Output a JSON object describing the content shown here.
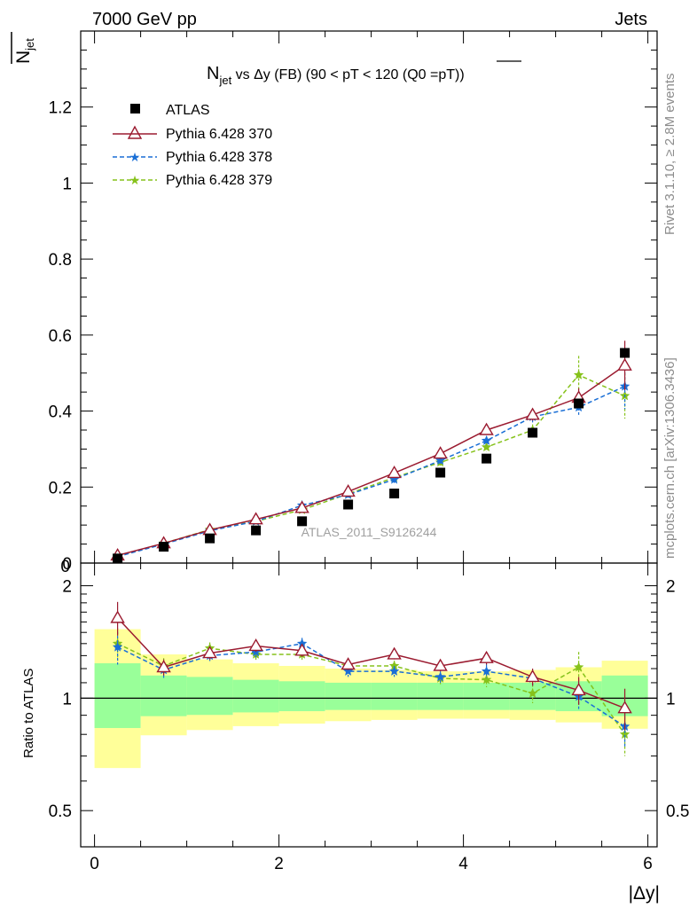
{
  "header": {
    "left": "7000 GeV pp",
    "right": "Jets"
  },
  "side": {
    "rivet": "Rivet 3.1.10, ≥ 2.8M events",
    "mcplots": "mcplots.cern.ch [arXiv:1306.3436]"
  },
  "chart_data": {
    "type": "scatter",
    "title_main": "N",
    "title_sub": "jet",
    "title_rest": " vs Δy (FB) (90 < pT < 120 (Q0 =pT))",
    "ylabel_main": "N",
    "ylabel_sub": "jet",
    "xlabel": "|Δy|",
    "ratio_ylabel": "Ratio to ATLAS",
    "watermark": "ATLAS_2011_S9126244",
    "xlim": [
      -0.15,
      6.1
    ],
    "ylim": [
      0,
      1.4
    ],
    "ratio_ylim": [
      0.4,
      2.3
    ],
    "ratio_scale": "log",
    "x_ticks": [
      "0",
      "2",
      "4",
      "6"
    ],
    "y_ticks": [
      "0",
      "0.2",
      "0.4",
      "0.6",
      "0.8",
      "1",
      "1.2"
    ],
    "ratio_ticks": [
      "0.5",
      "1",
      "2"
    ],
    "legend_position": "top-left",
    "x": [
      0.25,
      0.75,
      1.25,
      1.75,
      2.25,
      2.75,
      3.25,
      3.75,
      4.25,
      4.75,
      5.25,
      5.75
    ],
    "bin_edges": [
      0,
      0.5,
      1.0,
      1.5,
      2.0,
      2.5,
      3.0,
      3.5,
      4.0,
      4.5,
      5.0,
      5.5,
      6.0
    ],
    "series": [
      {
        "name": "ATLAS",
        "marker": "square",
        "color": "#000000",
        "values": [
          0.012,
          0.043,
          0.065,
          0.086,
          0.11,
          0.154,
          0.183,
          0.238,
          0.275,
          0.343,
          0.42,
          0.553
        ],
        "band_inner": [
          0.24,
          0.15,
          0.14,
          0.12,
          0.11,
          0.1,
          0.1,
          0.1,
          0.1,
          0.1,
          0.11,
          0.15
        ],
        "band_outer": [
          0.53,
          0.31,
          0.27,
          0.24,
          0.22,
          0.2,
          0.19,
          0.18,
          0.18,
          0.19,
          0.21,
          0.26
        ]
      },
      {
        "name": "Pythia 6.428 370",
        "marker": "open-triangle",
        "style": "solid",
        "color": "#9b1b30",
        "values": [
          0.02,
          0.052,
          0.087,
          0.115,
          0.145,
          0.188,
          0.237,
          0.288,
          0.35,
          0.39,
          0.435,
          0.52
        ],
        "err": [
          0.004,
          0.004,
          0.004,
          0.005,
          0.006,
          0.008,
          0.009,
          0.01,
          0.012,
          0.015,
          0.025,
          0.065
        ],
        "ratio": [
          1.64,
          1.21,
          1.32,
          1.38,
          1.34,
          1.23,
          1.31,
          1.22,
          1.28,
          1.14,
          1.05,
          0.94
        ],
        "ratio_err": [
          0.17,
          0.06,
          0.05,
          0.05,
          0.05,
          0.04,
          0.04,
          0.04,
          0.05,
          0.06,
          0.09,
          0.12
        ]
      },
      {
        "name": "Pythia 6.428 378",
        "marker": "star",
        "style": "dashed",
        "color": "#1a6fd6",
        "values": [
          0.017,
          0.05,
          0.085,
          0.11,
          0.152,
          0.18,
          0.22,
          0.27,
          0.322,
          0.385,
          0.41,
          0.465
        ],
        "err": [
          0.004,
          0.004,
          0.004,
          0.005,
          0.006,
          0.008,
          0.009,
          0.01,
          0.012,
          0.015,
          0.022,
          0.06
        ],
        "ratio": [
          1.37,
          1.19,
          1.3,
          1.33,
          1.4,
          1.18,
          1.18,
          1.14,
          1.18,
          1.13,
          1.01,
          0.84
        ],
        "ratio_err": [
          0.14,
          0.06,
          0.05,
          0.05,
          0.05,
          0.04,
          0.04,
          0.04,
          0.05,
          0.06,
          0.08,
          0.1
        ]
      },
      {
        "name": "Pythia 6.428 379",
        "marker": "star",
        "style": "dashed",
        "color": "#86c21b",
        "values": [
          0.018,
          0.052,
          0.088,
          0.11,
          0.14,
          0.182,
          0.225,
          0.265,
          0.305,
          0.35,
          0.495,
          0.44
        ],
        "err": [
          0.004,
          0.004,
          0.004,
          0.005,
          0.006,
          0.008,
          0.009,
          0.01,
          0.012,
          0.015,
          0.05,
          0.06
        ],
        "ratio": [
          1.4,
          1.22,
          1.36,
          1.31,
          1.31,
          1.22,
          1.22,
          1.13,
          1.12,
          1.03,
          1.21,
          0.8
        ],
        "ratio_err": [
          0.14,
          0.06,
          0.05,
          0.05,
          0.05,
          0.04,
          0.04,
          0.04,
          0.05,
          0.06,
          0.12,
          0.1
        ]
      }
    ]
  }
}
